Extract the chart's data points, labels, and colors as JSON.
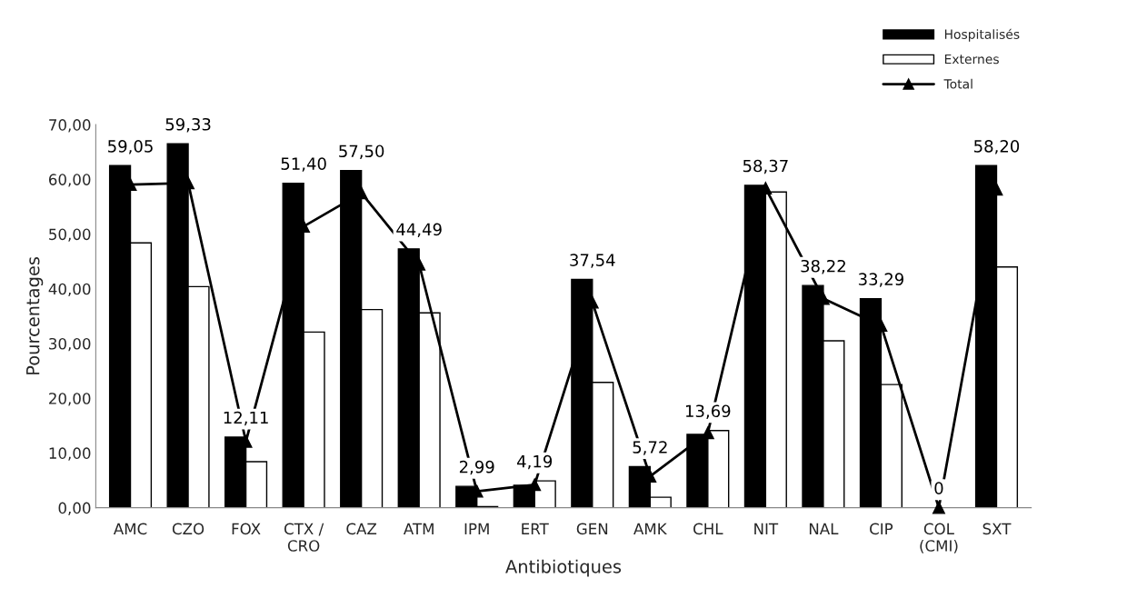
{
  "chart_data": {
    "type": "bar",
    "xlabel": "Antibiotiques",
    "ylabel": "Pourcentages",
    "categories": [
      "AMC",
      "CZO",
      "FOX",
      "CTX /\nCRO",
      "CAZ",
      "ATM",
      "IPM",
      "ERT",
      "GEN",
      "AMK",
      "CHL",
      "NIT",
      "NAL",
      "CIP",
      "COL\n(CMI)",
      "SXT"
    ],
    "series": [
      {
        "name": "Hospitalisés",
        "type": "bar",
        "color": "#000000",
        "values": [
          62.5,
          66.5,
          12.9,
          59.3,
          61.6,
          47.3,
          3.9,
          4.1,
          41.7,
          7.5,
          13.4,
          58.9,
          40.6,
          38.2,
          0,
          62.5
        ]
      },
      {
        "name": "Externes",
        "type": "bar",
        "color": "#ffffff",
        "values": [
          48.4,
          40.4,
          8.4,
          32.1,
          36.2,
          35.6,
          0.2,
          4.9,
          22.9,
          1.9,
          14.1,
          57.7,
          30.5,
          22.5,
          0,
          44.0
        ]
      },
      {
        "name": "Total",
        "type": "line",
        "color": "#000000",
        "marker": "triangle",
        "line_style": "solid",
        "values": [
          59.05,
          59.33,
          12.11,
          51.4,
          57.5,
          44.49,
          2.99,
          4.19,
          37.54,
          5.72,
          13.69,
          58.37,
          38.22,
          33.29,
          0,
          58.2
        ],
        "value_labels": [
          "59,05",
          "59,33",
          "12,11",
          "51,40",
          "57,50",
          "44,49",
          "2,99",
          "4,19",
          "37,54",
          "5,72",
          "13,69",
          "58,37",
          "38,22",
          "33,29",
          "0",
          "58,20"
        ]
      }
    ],
    "ylim": [
      0,
      70
    ],
    "yticks": [
      {
        "value": 0,
        "label": "0,00"
      },
      {
        "value": 10,
        "label": "10,00"
      },
      {
        "value": 20,
        "label": "20,00"
      },
      {
        "value": 30,
        "label": "30,00"
      },
      {
        "value": 40,
        "label": "40,00"
      },
      {
        "value": 50,
        "label": "50,00"
      },
      {
        "value": 60,
        "label": "60,00"
      },
      {
        "value": 70,
        "label": "70,00"
      }
    ],
    "grid": false,
    "legend": "top right"
  }
}
